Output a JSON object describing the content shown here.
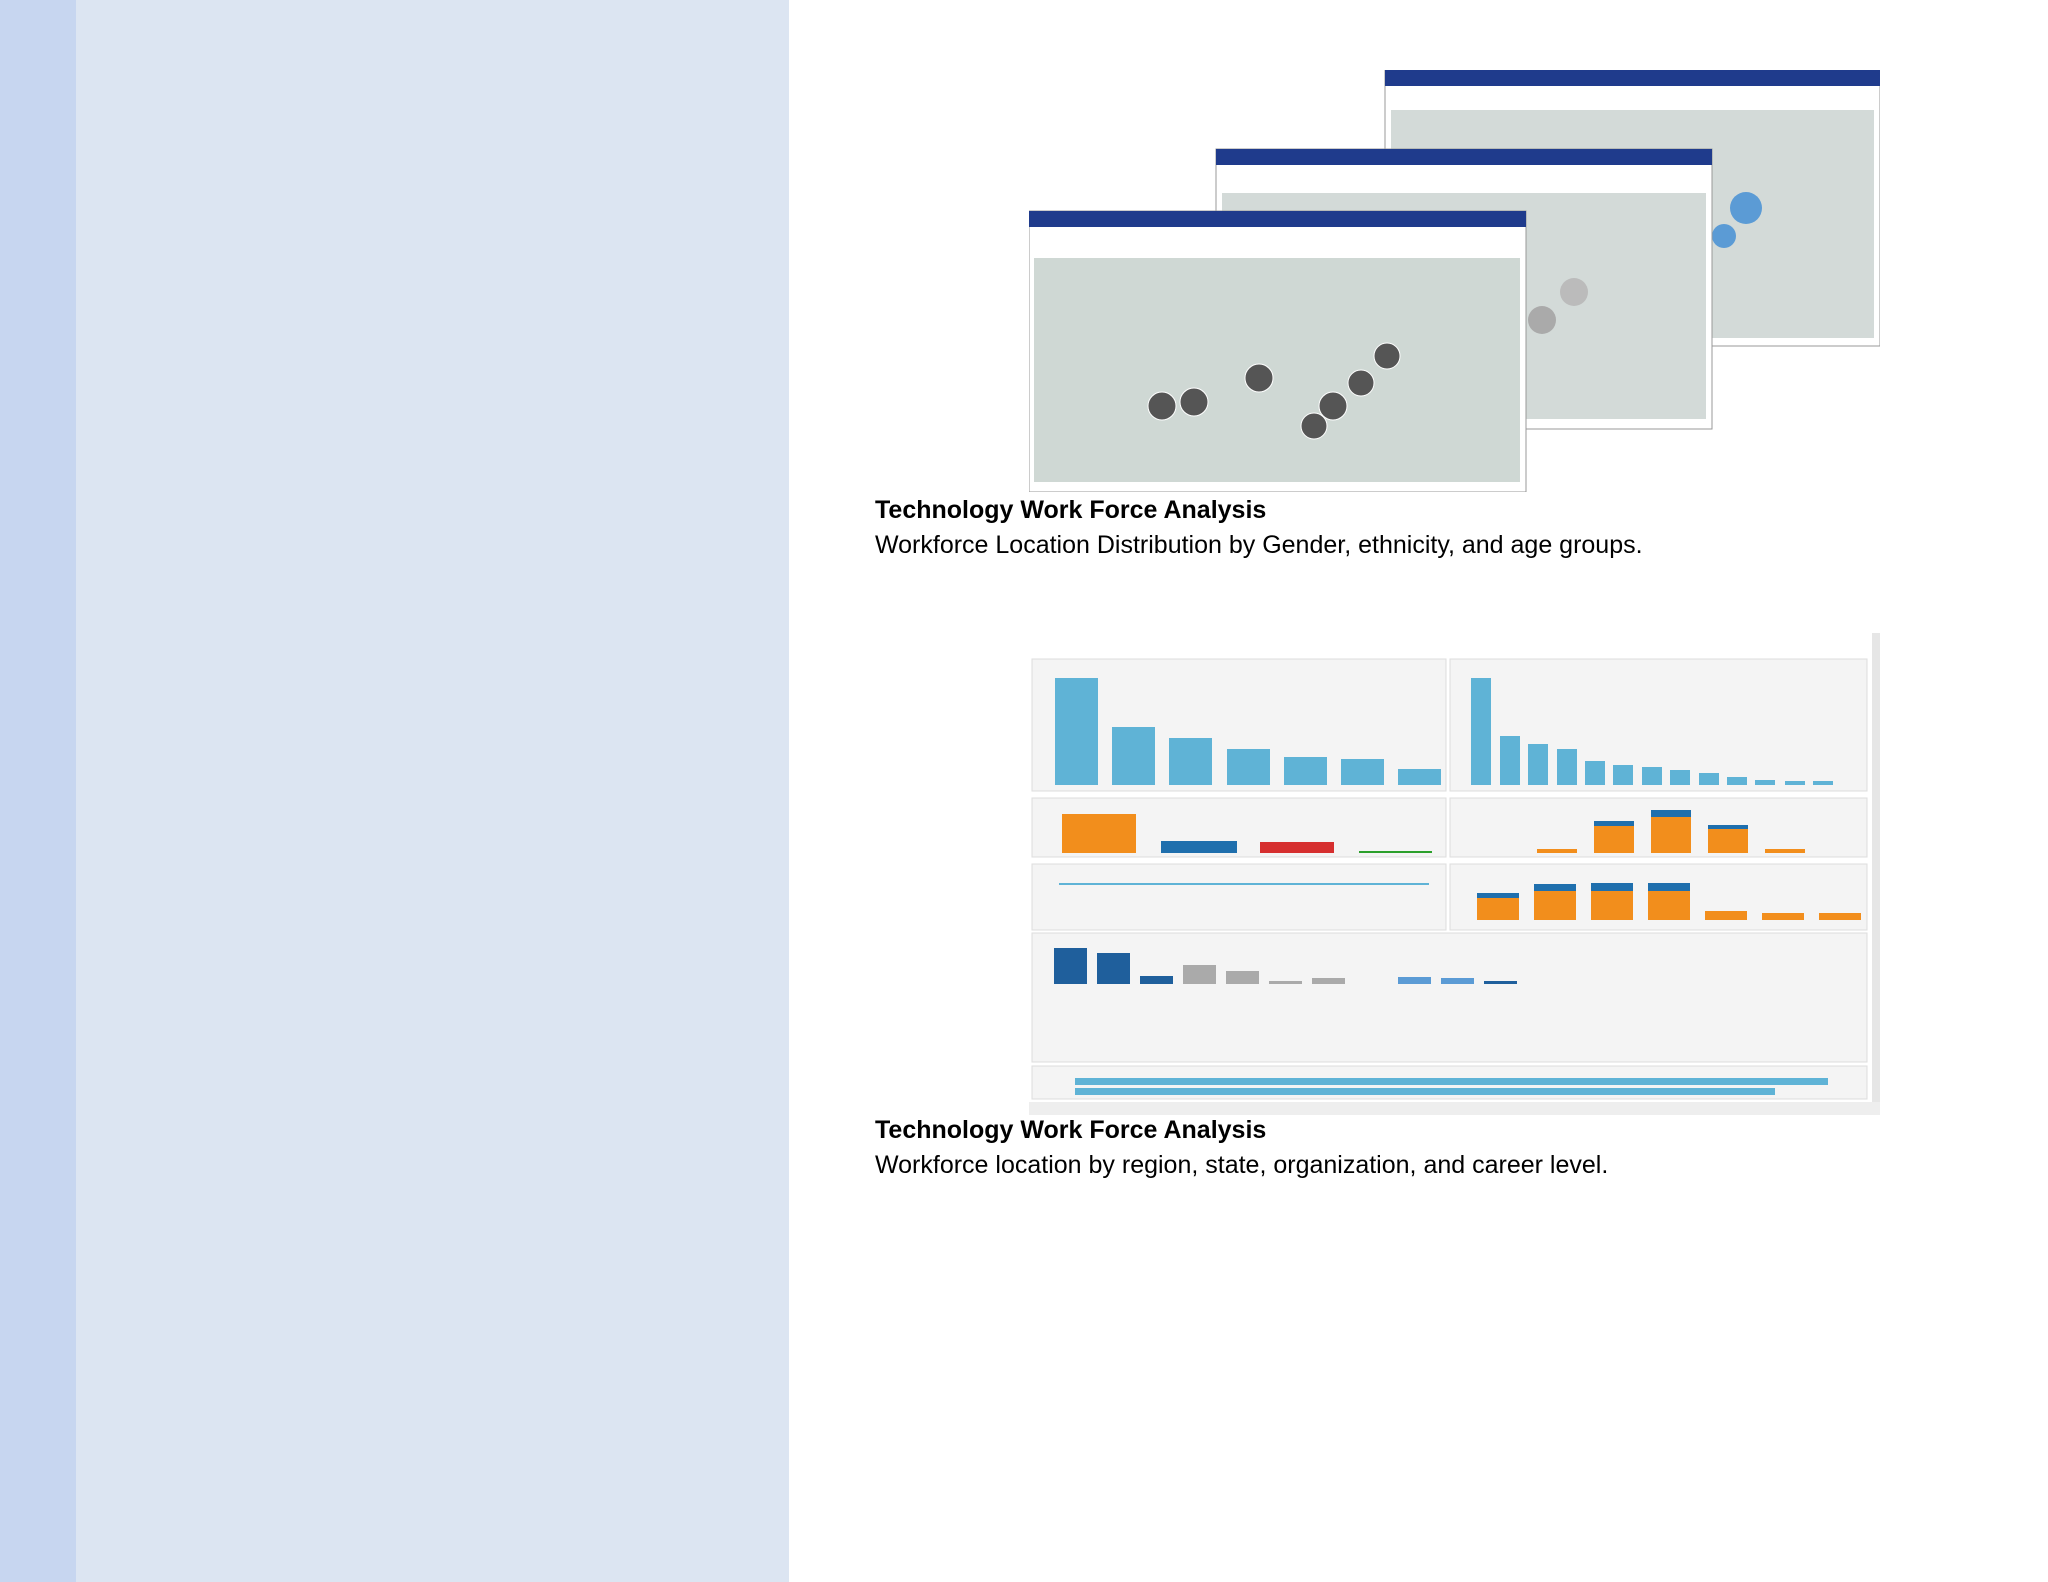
{
  "items": [
    {
      "title": "Technology Work Force Analysis",
      "description": "Workforce Location Distribution by Gender, ethnicity, and age groups."
    },
    {
      "title": "Technology Work Force Analysis",
      "description": "Workforce location by region, state, organization, and career level."
    }
  ]
}
